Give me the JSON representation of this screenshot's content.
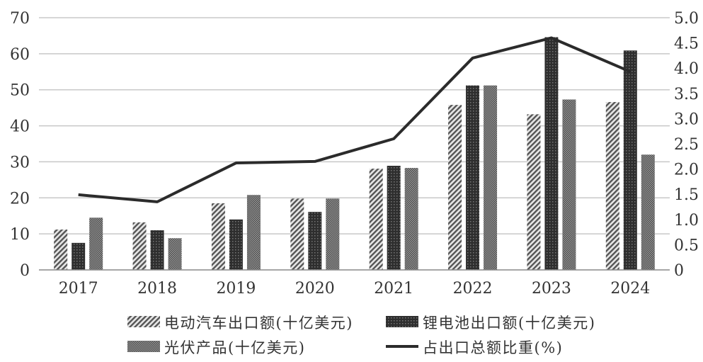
{
  "chart_data": {
    "type": "bar",
    "title": "",
    "categories": [
      "2017",
      "2018",
      "2019",
      "2020",
      "2021",
      "2022",
      "2023",
      "2024"
    ],
    "series": [
      {
        "name": "电动汽车出口额(十亿美元)",
        "axis": "left",
        "kind": "bar",
        "pattern": "hatch",
        "values": [
          11.2,
          13.2,
          18.5,
          19.8,
          28.1,
          45.8,
          43.2,
          46.6
        ]
      },
      {
        "name": "锂电池出口额(十亿美元)",
        "axis": "left",
        "kind": "bar",
        "pattern": "dark",
        "values": [
          7.5,
          11.0,
          14.0,
          16.1,
          28.9,
          51.2,
          64.6,
          60.9
        ]
      },
      {
        "name": "光伏产品(十亿美元)",
        "axis": "left",
        "kind": "bar",
        "pattern": "dots",
        "values": [
          14.5,
          8.8,
          20.8,
          19.8,
          28.3,
          51.2,
          47.3,
          32.0
        ]
      },
      {
        "name": "占出口总额比重(%)",
        "axis": "right",
        "kind": "line",
        "values": [
          1.49,
          1.35,
          2.12,
          2.15,
          2.6,
          4.2,
          4.6,
          3.93
        ]
      }
    ],
    "ylim_left": [
      0,
      70
    ],
    "yticks_left": [
      "0",
      "10",
      "20",
      "30",
      "40",
      "50",
      "60",
      "70"
    ],
    "ylim_right": [
      0,
      5.0
    ],
    "yticks_right": [
      "0",
      "0.5",
      "1.0",
      "1.5",
      "2.0",
      "2.5",
      "3.0",
      "3.5",
      "4.0",
      "4.5",
      "5.0"
    ],
    "grid": true,
    "legend_position": "bottom",
    "colors": {
      "grid": "#c8c8c8",
      "line": "#2b2b2b",
      "axis": "#888888"
    }
  }
}
